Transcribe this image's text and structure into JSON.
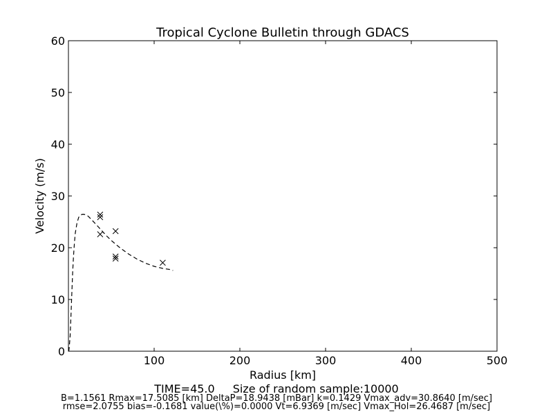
{
  "chart_data": {
    "type": "scatter",
    "title": "Tropical Cyclone Bulletin through GDACS",
    "xlabel": "Radius [km]",
    "ylabel": "Velocity (m/s)",
    "xlim": [
      0,
      500
    ],
    "ylim": [
      0,
      60
    ],
    "xticks": [
      100,
      200,
      300,
      400,
      500
    ],
    "yticks": [
      0,
      10,
      20,
      30,
      40,
      50,
      60
    ],
    "grid": false,
    "series": [
      {
        "style": "dashed-line",
        "color": "#000000",
        "x": [
          0.4,
          1,
          2,
          3,
          4,
          5,
          6,
          7,
          8,
          10,
          12,
          14,
          16,
          17.5,
          20,
          23,
          26,
          30,
          35,
          40,
          45,
          50,
          55,
          60,
          65,
          70,
          80,
          90,
          100,
          110,
          118,
          122
        ],
        "y": [
          0,
          0.8,
          3,
          7,
          11.5,
          15.5,
          18.5,
          21,
          22.8,
          24.8,
          25.9,
          26.3,
          26.45,
          26.47,
          26.4,
          26.1,
          25.6,
          24.9,
          24.0,
          23.1,
          22.2,
          21.4,
          20.7,
          20.0,
          19.4,
          18.8,
          17.8,
          17.0,
          16.4,
          16.0,
          15.8,
          15.6
        ]
      },
      {
        "style": "markers-x",
        "color": "#000000",
        "x": [
          37,
          37,
          37,
          55,
          55,
          55,
          110
        ],
        "y": [
          26.4,
          25.9,
          22.6,
          23.2,
          18.3,
          17.9,
          17.1
        ]
      }
    ]
  },
  "footer": {
    "time": "TIME=45.0",
    "sample": "Size of random sample:10000",
    "params_line1": "B=1.1561 Rmax=17.5085 [km]  DeltaP=18.9438 [mBar] k=0.1429 Vmax_adv=30.8640 [m/sec]",
    "params_line2": "rmse=2.0755 bias=-0.1681 value(\\%)=0.0000 Vt=6.9369 [m/sec] Vmax_Hol=26.4687 [m/sec]"
  }
}
